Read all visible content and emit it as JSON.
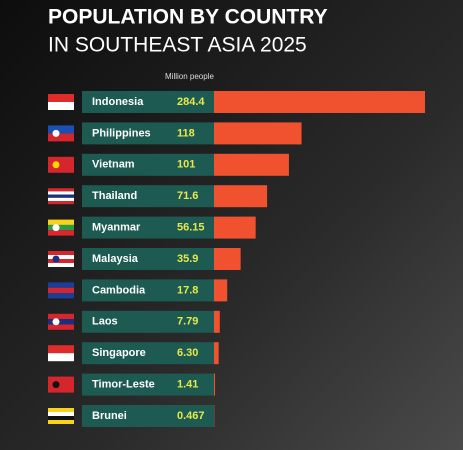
{
  "chart_data": {
    "type": "bar",
    "orientation": "horizontal",
    "title": "POPULATION BY COUNTRY",
    "subtitle": "IN SOUTHEAST ASIA 2025",
    "value_axis_label": "Million people",
    "categories": [
      "Indonesia",
      "Philippines",
      "Vietnam",
      "Thailand",
      "Myanmar",
      "Malaysia",
      "Cambodia",
      "Laos",
      "Singapore",
      "Timor-Leste",
      "Brunei"
    ],
    "values": [
      284.4,
      118,
      101,
      71.6,
      56.15,
      35.9,
      17.8,
      7.79,
      6.3,
      1.41,
      0.467
    ],
    "value_labels": [
      "284.4",
      "118",
      "101",
      "71.6",
      "56.15",
      "35.9",
      "17.8",
      "7.79",
      "6.30",
      "1.41",
      "0.467"
    ],
    "color": "#f0522f"
  }
}
